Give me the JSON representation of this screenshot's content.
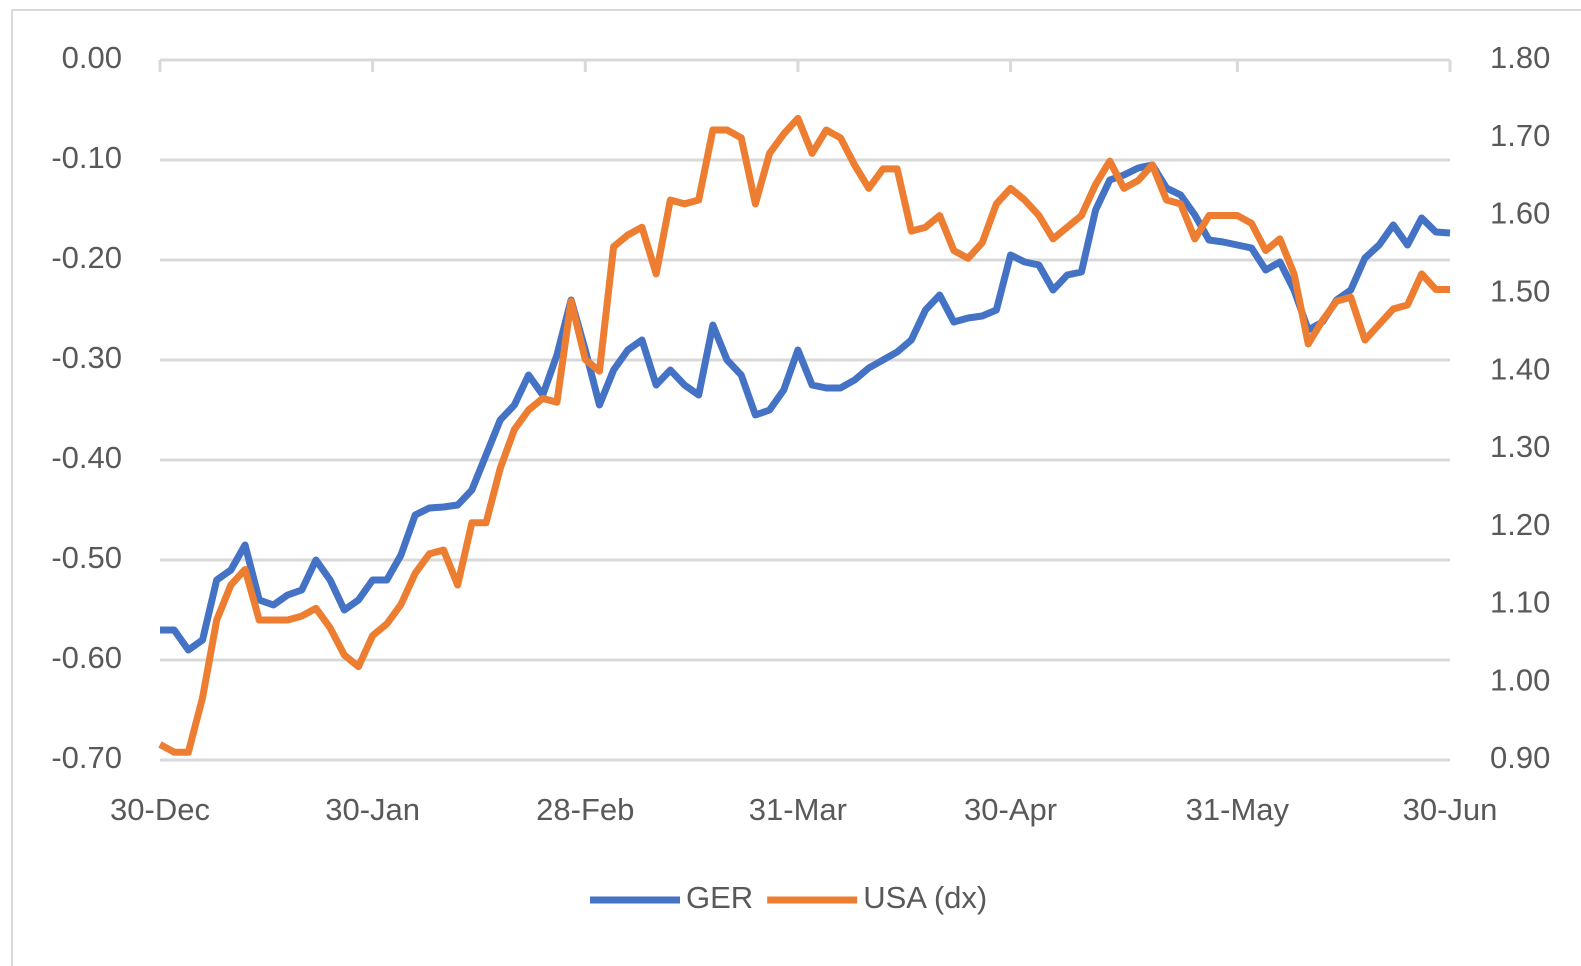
{
  "chart_data": {
    "type": "line",
    "categories": [
      "30-Dec",
      null,
      null,
      null,
      null,
      null,
      null,
      null,
      null,
      null,
      null,
      null,
      null,
      null,
      null,
      "30-Jan",
      null,
      null,
      null,
      null,
      null,
      null,
      null,
      null,
      null,
      null,
      null,
      null,
      null,
      null,
      "28-Feb",
      null,
      null,
      null,
      null,
      null,
      null,
      null,
      null,
      null,
      null,
      null,
      null,
      null,
      null,
      "31-Mar",
      null,
      null,
      null,
      null,
      null,
      null,
      null,
      null,
      null,
      null,
      null,
      null,
      null,
      null,
      "30-Apr",
      null,
      null,
      null,
      null,
      null,
      null,
      null,
      null,
      null,
      null,
      null,
      null,
      null,
      null,
      null,
      "31-May",
      null,
      null,
      null,
      null,
      null,
      null,
      null,
      null,
      null,
      null,
      null,
      null,
      null,
      null,
      "30-Jun"
    ],
    "series": [
      {
        "name": "GER",
        "color": "#4472c4",
        "values": [
          -0.57,
          -0.57,
          -0.59,
          -0.58,
          -0.52,
          -0.51,
          -0.485,
          -0.54,
          -0.545,
          -0.535,
          -0.53,
          -0.5,
          -0.52,
          -0.55,
          -0.54,
          -0.52,
          -0.52,
          -0.495,
          -0.455,
          -0.448,
          -0.447,
          -0.445,
          -0.43,
          -0.395,
          -0.36,
          -0.345,
          -0.315,
          -0.335,
          -0.295,
          -0.24,
          -0.29,
          -0.345,
          -0.31,
          -0.29,
          -0.28,
          -0.325,
          -0.31,
          -0.325,
          -0.335,
          -0.265,
          -0.3,
          -0.315,
          -0.355,
          -0.35,
          -0.33,
          -0.29,
          -0.325,
          -0.328,
          -0.328,
          -0.32,
          -0.308,
          -0.3,
          -0.292,
          -0.28,
          -0.25,
          -0.235,
          -0.262,
          -0.258,
          -0.256,
          -0.25,
          -0.195,
          -0.202,
          -0.205,
          -0.23,
          -0.215,
          -0.212,
          -0.15,
          -0.12,
          -0.115,
          -0.108,
          -0.105,
          -0.128,
          -0.135,
          -0.155,
          -0.18,
          -0.182,
          -0.185,
          -0.188,
          -0.21,
          -0.202,
          -0.23,
          -0.27,
          -0.262,
          -0.24,
          -0.23,
          -0.198,
          -0.185,
          -0.165,
          -0.185,
          -0.158,
          -0.172,
          -0.173
        ]
      },
      {
        "name": "USA (dx)",
        "color": "#ed7d31",
        "axis": "y2",
        "values": [
          0.92,
          0.91,
          0.91,
          0.98,
          1.08,
          1.125,
          1.145,
          1.08,
          1.08,
          1.08,
          1.085,
          1.095,
          1.07,
          1.035,
          1.02,
          1.06,
          1.075,
          1.1,
          1.14,
          1.165,
          1.17,
          1.125,
          1.205,
          1.205,
          1.275,
          1.325,
          1.35,
          1.365,
          1.36,
          1.49,
          1.415,
          1.4,
          1.56,
          1.575,
          1.585,
          1.525,
          1.62,
          1.615,
          1.62,
          1.71,
          1.71,
          1.7,
          1.615,
          1.68,
          1.705,
          1.725,
          1.68,
          1.71,
          1.7,
          1.665,
          1.635,
          1.66,
          1.66,
          1.58,
          1.585,
          1.6,
          1.555,
          1.545,
          1.565,
          1.615,
          1.635,
          1.62,
          1.6,
          1.57,
          1.585,
          1.6,
          1.64,
          1.67,
          1.635,
          1.645,
          1.665,
          1.62,
          1.615,
          1.57,
          1.6,
          1.6,
          1.6,
          1.59,
          1.555,
          1.57,
          1.525,
          1.435,
          1.465,
          1.49,
          1.495,
          1.44,
          1.46,
          1.48,
          1.485,
          1.525,
          1.505,
          1.505
        ]
      }
    ],
    "ylim": [
      -0.7,
      0
    ],
    "yticks": [
      {
        "value": -0.7,
        "label": "-0.70"
      },
      {
        "value": -0.6,
        "label": "-0.60"
      },
      {
        "value": -0.5,
        "label": "-0.50"
      },
      {
        "value": -0.4,
        "label": "-0.40"
      },
      {
        "value": -0.3,
        "label": "-0.30"
      },
      {
        "value": -0.2,
        "label": "-0.20"
      },
      {
        "value": -0.1,
        "label": "-0.10"
      },
      {
        "value": 0,
        "label": "0.00"
      }
    ],
    "y2lim": [
      0.9,
      1.8
    ],
    "y2ticks": [
      {
        "value": 0.9,
        "label": "0.90"
      },
      {
        "value": 1.0,
        "label": "1.00"
      },
      {
        "value": 1.1,
        "label": "1.10"
      },
      {
        "value": 1.2,
        "label": "1.20"
      },
      {
        "value": 1.3,
        "label": "1.30"
      },
      {
        "value": 1.4,
        "label": "1.40"
      },
      {
        "value": 1.5,
        "label": "1.50"
      },
      {
        "value": 1.6,
        "label": "1.60"
      },
      {
        "value": 1.7,
        "label": "1.70"
      },
      {
        "value": 1.8,
        "label": "1.80"
      }
    ],
    "grid": true,
    "legend": "bottom"
  }
}
